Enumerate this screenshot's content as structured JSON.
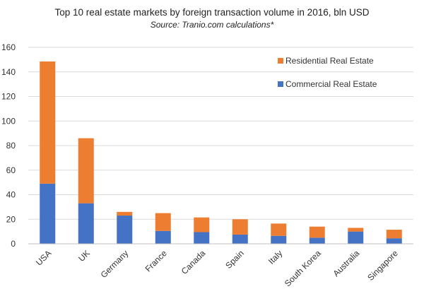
{
  "chart_data": {
    "type": "bar",
    "stacked": true,
    "title": "Top 10 real estate markets by foreign transaction volume in 2016, bln USD",
    "subtitle": "Source: Tranio.com calculations*",
    "categories": [
      "USA",
      "UK",
      "Germany",
      "France",
      "Canada",
      "Spain",
      "Italy",
      "South Korea",
      "Australia",
      "Singapore"
    ],
    "series": [
      {
        "name": "Commercial Real Estate",
        "color": "#4472C4",
        "values": [
          49,
          33,
          23,
          10.5,
          9.5,
          7.5,
          6.5,
          5,
          10,
          4.5
        ]
      },
      {
        "name": "Residential Real Estate",
        "color": "#ED7D31",
        "values": [
          99.5,
          53,
          3,
          14.5,
          12,
          12.5,
          10,
          9,
          3,
          7
        ]
      }
    ],
    "ylim": [
      0,
      160
    ],
    "yticks": [
      0,
      20,
      40,
      60,
      80,
      100,
      120,
      140,
      160
    ],
    "grid": true,
    "legend_position": "top-right",
    "xlabel": "",
    "ylabel": ""
  }
}
